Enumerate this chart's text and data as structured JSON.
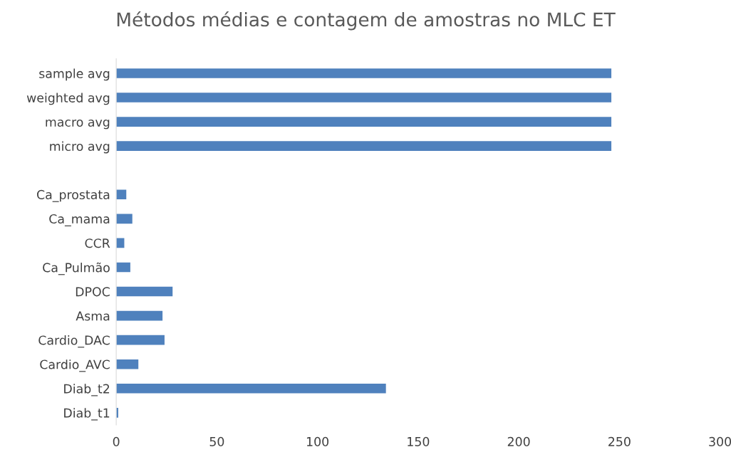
{
  "chart_data": {
    "type": "bar",
    "orientation": "horizontal",
    "title": "Métodos médias e contagem de amostras no MLC ET",
    "categories": [
      "sample avg",
      "weighted avg",
      "macro avg",
      "micro avg",
      null,
      "Ca_prostata",
      "Ca_mama",
      "CCR",
      "Ca_Pulmão",
      "DPOC",
      "Asma",
      "Cardio_DAC",
      "Cardio_AVC",
      "Diab_t2",
      "Diab_t1"
    ],
    "values": [
      246,
      246,
      246,
      246,
      null,
      5,
      8,
      4,
      7,
      28,
      23,
      24,
      11,
      134,
      1
    ],
    "color": "#4f81bd",
    "xlim": [
      0,
      300
    ],
    "xticks": [
      0,
      50,
      100,
      150,
      200,
      250,
      300
    ],
    "grid": false
  }
}
